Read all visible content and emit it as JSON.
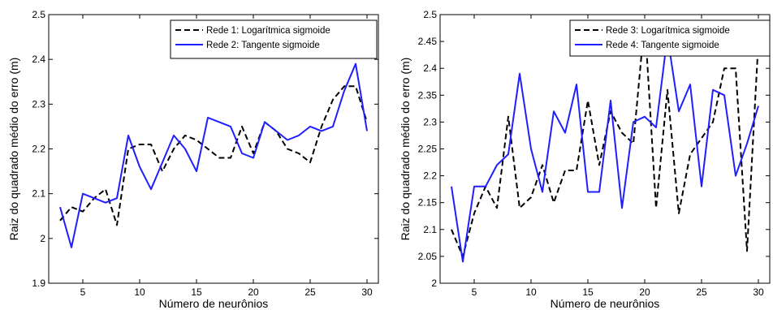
{
  "chart_data": [
    {
      "type": "line",
      "xlabel": "Número de neurônios",
      "ylabel": "Raiz do quadrado médio do erro (m)",
      "xlim": [
        2,
        31
      ],
      "ylim": [
        1.9,
        2.5
      ],
      "xticks": [
        5,
        10,
        15,
        20,
        25,
        30
      ],
      "yticks": [
        1.9,
        2,
        2.1,
        2.2,
        2.3,
        2.4,
        2.5
      ],
      "yticklabels": [
        "1.9",
        "2",
        "2.1",
        "2.2",
        "2.3",
        "2.4",
        "2.5"
      ],
      "legend_position": "top-right",
      "grid": false,
      "x": [
        3,
        4,
        5,
        6,
        7,
        8,
        9,
        10,
        11,
        12,
        13,
        14,
        15,
        16,
        17,
        18,
        19,
        20,
        21,
        22,
        23,
        24,
        25,
        26,
        27,
        28,
        29,
        30
      ],
      "series": [
        {
          "name": "Rede 1: Logarítmica sigmoide",
          "color": "#000000",
          "style": "dashed",
          "values": [
            2.04,
            2.07,
            2.06,
            2.09,
            2.11,
            2.03,
            2.2,
            2.21,
            2.21,
            2.15,
            2.2,
            2.23,
            2.22,
            2.2,
            2.18,
            2.18,
            2.25,
            2.19,
            2.26,
            2.24,
            2.2,
            2.19,
            2.17,
            2.25,
            2.31,
            2.34,
            2.34,
            2.26
          ]
        },
        {
          "name": "Rede 2: Tangente sigmoide",
          "color": "#1f1fff",
          "style": "solid",
          "values": [
            2.07,
            1.98,
            2.1,
            2.09,
            2.08,
            2.09,
            2.23,
            2.16,
            2.11,
            2.17,
            2.23,
            2.2,
            2.15,
            2.27,
            2.26,
            2.25,
            2.19,
            2.18,
            2.26,
            2.24,
            2.22,
            2.23,
            2.25,
            2.24,
            2.25,
            2.33,
            2.39,
            2.24
          ]
        }
      ]
    },
    {
      "type": "line",
      "xlabel": "Número de neurônios",
      "ylabel": "Raiz do quadrado médio do erro (m)",
      "xlim": [
        2,
        31
      ],
      "ylim": [
        2.0,
        2.5
      ],
      "xticks": [
        5,
        10,
        15,
        20,
        25,
        30
      ],
      "yticks": [
        2.0,
        2.05,
        2.1,
        2.15,
        2.2,
        2.25,
        2.3,
        2.35,
        2.4,
        2.45,
        2.5
      ],
      "yticklabels": [
        "2",
        "2.05",
        "2.1",
        "2.15",
        "2.2",
        "2.25",
        "2.3",
        "2.35",
        "2.4",
        "2.45",
        "2.5"
      ],
      "legend_position": "top-right",
      "grid": false,
      "x": [
        3,
        4,
        5,
        6,
        7,
        8,
        9,
        10,
        11,
        12,
        13,
        14,
        15,
        16,
        17,
        18,
        19,
        20,
        21,
        22,
        23,
        24,
        25,
        26,
        27,
        28,
        29,
        30
      ],
      "series": [
        {
          "name": "Rede 3: Logarítmica sigmoide",
          "color": "#000000",
          "style": "dashed",
          "values": [
            2.1,
            2.05,
            2.13,
            2.18,
            2.14,
            2.31,
            2.14,
            2.16,
            2.22,
            2.15,
            2.21,
            2.21,
            2.34,
            2.22,
            2.32,
            2.28,
            2.26,
            2.49,
            2.14,
            2.36,
            2.13,
            2.24,
            2.27,
            2.3,
            2.4,
            2.4,
            2.06,
            2.45
          ]
        },
        {
          "name": "Rede 4: Tangente sigmoide",
          "color": "#1f1fff",
          "style": "solid",
          "values": [
            2.18,
            2.04,
            2.18,
            2.18,
            2.22,
            2.24,
            2.39,
            2.25,
            2.17,
            2.32,
            2.28,
            2.37,
            2.17,
            2.17,
            2.34,
            2.14,
            2.3,
            2.31,
            2.29,
            2.46,
            2.32,
            2.37,
            2.18,
            2.36,
            2.35,
            2.2,
            2.26,
            2.33
          ]
        }
      ]
    }
  ]
}
